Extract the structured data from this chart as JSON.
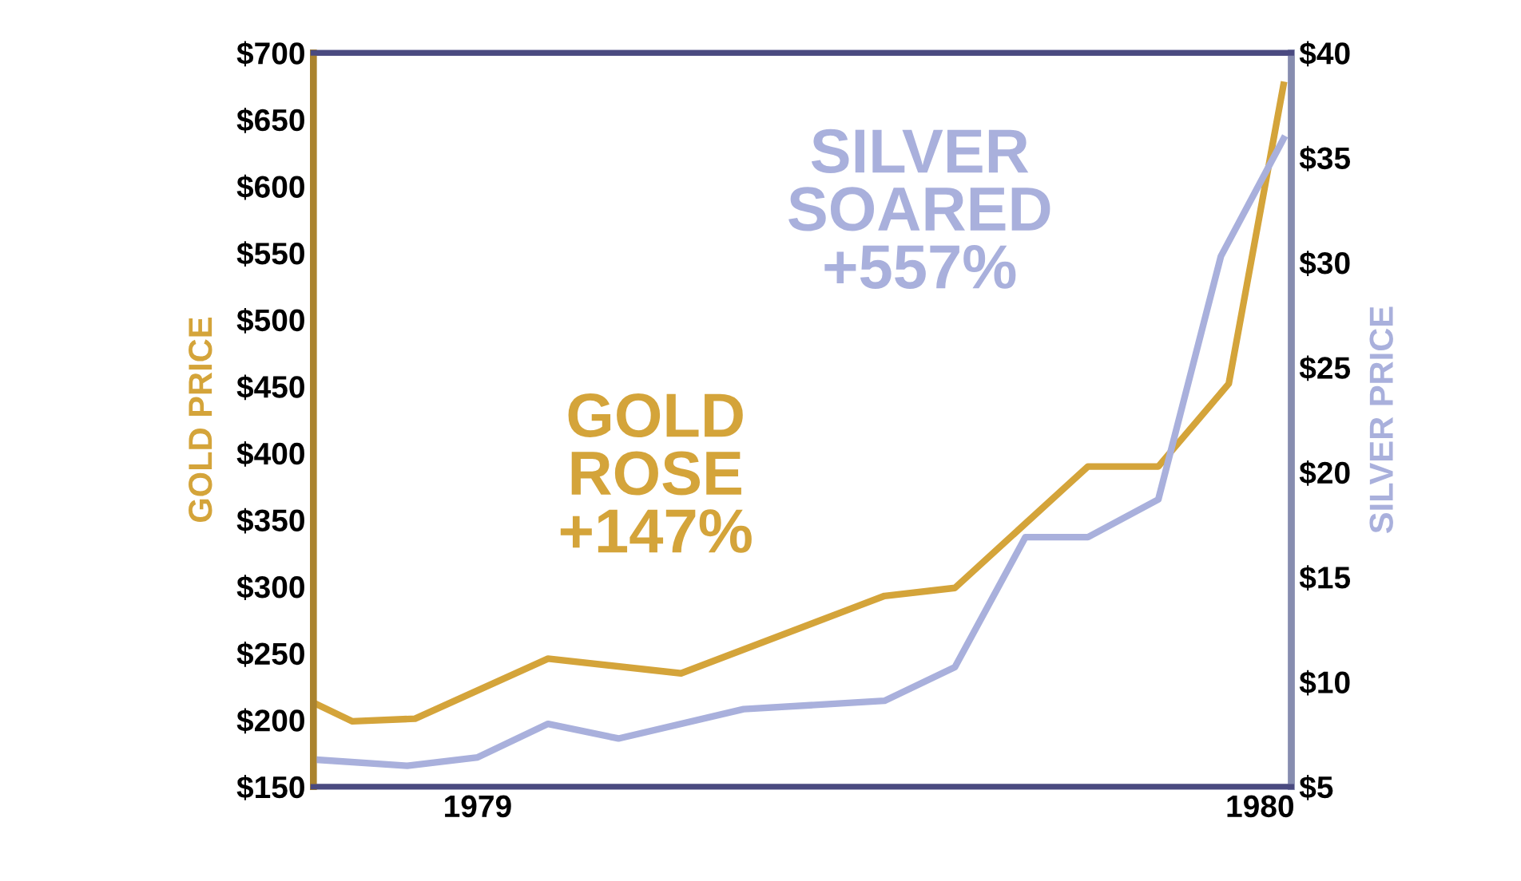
{
  "chart_data": {
    "type": "line",
    "ylabel": "GOLD PRICE",
    "y2label": "SILVER PRICE",
    "annotations": [
      "GOLD\nROSE\n+147%",
      "SILVER\nSOARED\n+557%"
    ],
    "xlim": [
      1978.79,
      1980.04
    ],
    "xticks": [
      1979,
      1980
    ],
    "ylim": [
      150,
      700
    ],
    "yticks": [
      {
        "value": 150,
        "label": "$150"
      },
      {
        "value": 200,
        "label": "$200"
      },
      {
        "value": 250,
        "label": "$250"
      },
      {
        "value": 300,
        "label": "$300"
      },
      {
        "value": 350,
        "label": "$350"
      },
      {
        "value": 400,
        "label": "$400"
      },
      {
        "value": 450,
        "label": "$450"
      },
      {
        "value": 500,
        "label": "$500"
      },
      {
        "value": 550,
        "label": "$550"
      },
      {
        "value": 600,
        "label": "$600"
      },
      {
        "value": 650,
        "label": "$650"
      },
      {
        "value": 700,
        "label": "$700"
      }
    ],
    "y2lim": [
      5,
      40
    ],
    "y2ticks": [
      {
        "value": 5,
        "label": "$5"
      },
      {
        "value": 10,
        "label": "$10"
      },
      {
        "value": 15,
        "label": "$15"
      },
      {
        "value": 20,
        "label": "$20"
      },
      {
        "value": 25,
        "label": "$25"
      },
      {
        "value": 30,
        "label": "$30"
      },
      {
        "value": 35,
        "label": "$35"
      },
      {
        "value": 40,
        "label": "$40"
      }
    ],
    "grid": false,
    "legend": false,
    "series": [
      {
        "color": "#a9b0dc",
        "axis": "y2",
        "x": [
          1978.79,
          1978.91,
          1979.0,
          1979.09,
          1979.18,
          1979.34,
          1979.52,
          1979.61,
          1979.7,
          1979.78,
          1979.87,
          1979.95,
          1980.03
        ],
        "values": [
          6.3,
          6.0,
          6.4,
          8.0,
          7.3,
          8.7,
          9.1,
          10.7,
          16.9,
          16.9,
          18.7,
          30.3,
          35.9
        ]
      },
      {
        "color": "#d4a43a",
        "x": [
          1978.79,
          1978.84,
          1978.92,
          1979.09,
          1979.26,
          1979.52,
          1979.61,
          1979.78,
          1979.87,
          1979.96,
          1980.03
        ],
        "values": [
          213,
          199,
          201,
          246,
          235,
          293,
          299,
          390,
          390,
          452,
          676
        ]
      }
    ]
  }
}
